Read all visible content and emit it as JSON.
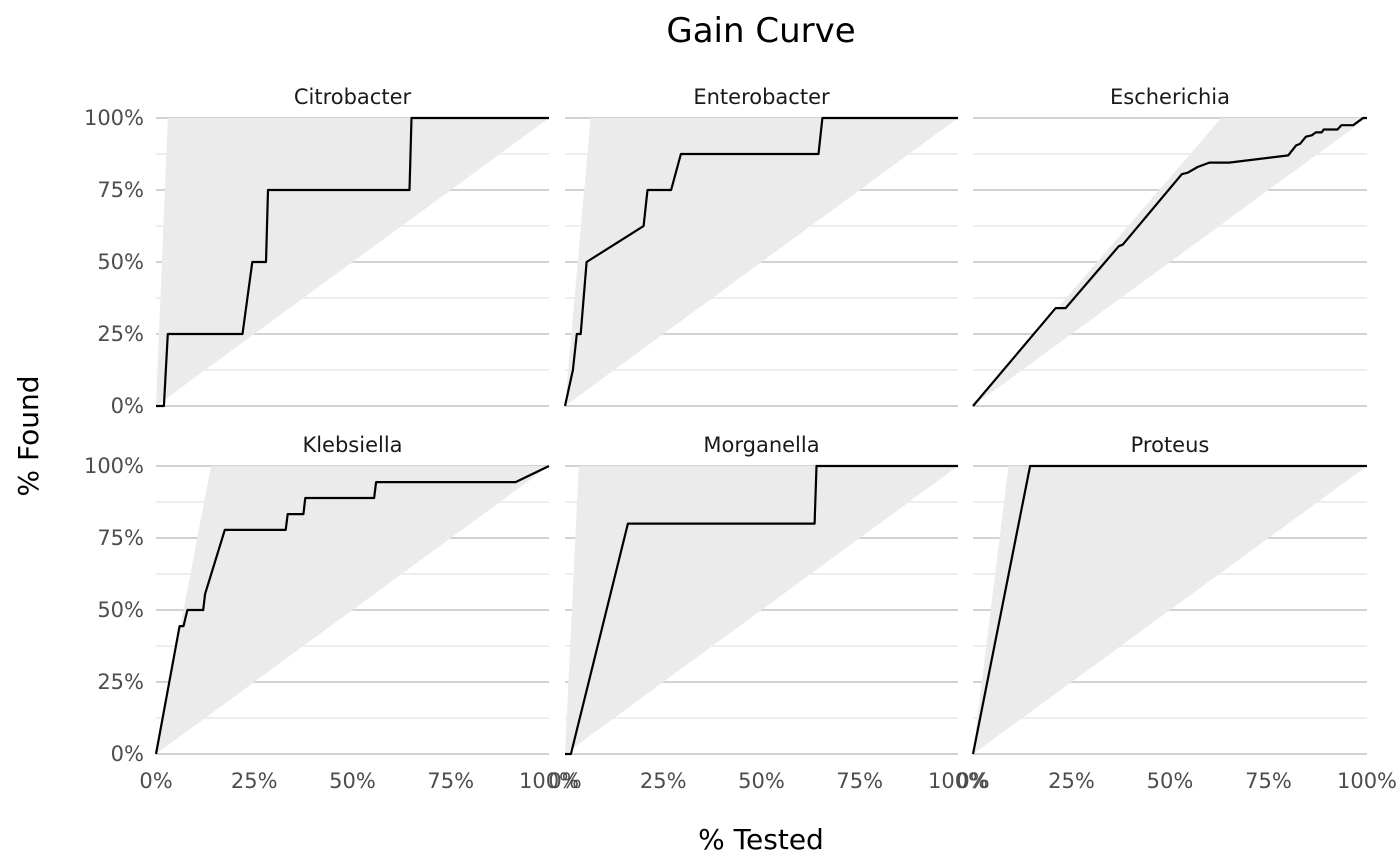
{
  "chart_data": {
    "type": "line",
    "title": "Gain Curve",
    "xlabel": "% Tested",
    "ylabel": "% Found",
    "xlim": [
      0,
      1
    ],
    "ylim": [
      0,
      1
    ],
    "x_tick_labels": [
      "0%",
      "25%",
      "50%",
      "75%",
      "100%"
    ],
    "y_tick_labels": [
      "0%",
      "25%",
      "50%",
      "75%",
      "100%"
    ],
    "grid": true,
    "facets": [
      {
        "name": "Citrobacter",
        "best_x": 0.03,
        "curve": [
          [
            0,
            0
          ],
          [
            0.02,
            0
          ],
          [
            0.03,
            0.25
          ],
          [
            0.22,
            0.25
          ],
          [
            0.245,
            0.5
          ],
          [
            0.28,
            0.5
          ],
          [
            0.285,
            0.75
          ],
          [
            0.645,
            0.75
          ],
          [
            0.65,
            1.0
          ],
          [
            1.0,
            1.0
          ]
        ]
      },
      {
        "name": "Enterobacter",
        "best_x": 0.065,
        "curve": [
          [
            0,
            0
          ],
          [
            0.02,
            0.125
          ],
          [
            0.03,
            0.25
          ],
          [
            0.04,
            0.25
          ],
          [
            0.055,
            0.5
          ],
          [
            0.2,
            0.625
          ],
          [
            0.21,
            0.75
          ],
          [
            0.27,
            0.75
          ],
          [
            0.295,
            0.875
          ],
          [
            0.645,
            0.875
          ],
          [
            0.655,
            1.0
          ],
          [
            1.0,
            1.0
          ]
        ]
      },
      {
        "name": "Escherichia",
        "best_x": 0.63,
        "curve": [
          [
            0,
            0
          ],
          [
            0.21,
            0.34
          ],
          [
            0.235,
            0.34
          ],
          [
            0.37,
            0.555
          ],
          [
            0.38,
            0.56
          ],
          [
            0.53,
            0.805
          ],
          [
            0.545,
            0.81
          ],
          [
            0.57,
            0.83
          ],
          [
            0.6,
            0.845
          ],
          [
            0.65,
            0.845
          ],
          [
            0.8,
            0.87
          ],
          [
            0.82,
            0.905
          ],
          [
            0.83,
            0.91
          ],
          [
            0.845,
            0.935
          ],
          [
            0.86,
            0.94
          ],
          [
            0.87,
            0.95
          ],
          [
            0.885,
            0.95
          ],
          [
            0.89,
            0.96
          ],
          [
            0.925,
            0.96
          ],
          [
            0.935,
            0.975
          ],
          [
            0.965,
            0.975
          ],
          [
            0.99,
            1.0
          ],
          [
            1.0,
            1.0
          ]
        ]
      },
      {
        "name": "Klebsiella",
        "best_x": 0.14,
        "curve": [
          [
            0,
            0
          ],
          [
            0.06,
            0.444
          ],
          [
            0.07,
            0.444
          ],
          [
            0.08,
            0.5
          ],
          [
            0.12,
            0.5
          ],
          [
            0.125,
            0.556
          ],
          [
            0.175,
            0.778
          ],
          [
            0.33,
            0.778
          ],
          [
            0.335,
            0.833
          ],
          [
            0.375,
            0.833
          ],
          [
            0.38,
            0.889
          ],
          [
            0.555,
            0.889
          ],
          [
            0.56,
            0.944
          ],
          [
            0.915,
            0.944
          ],
          [
            1.0,
            1.0
          ]
        ]
      },
      {
        "name": "Morganella",
        "best_x": 0.035,
        "curve": [
          [
            0,
            0
          ],
          [
            0.015,
            0
          ],
          [
            0.16,
            0.8
          ],
          [
            0.635,
            0.8
          ],
          [
            0.64,
            1.0
          ],
          [
            1.0,
            1.0
          ]
        ]
      },
      {
        "name": "Proteus",
        "best_x": 0.09,
        "curve": [
          [
            0,
            0
          ],
          [
            0.145,
            1.0
          ],
          [
            1.0,
            1.0
          ]
        ]
      }
    ]
  },
  "colors": {
    "background": "#ffffff",
    "band_fill": "#ebebeb",
    "major_grid": "#c4c4c4",
    "minor_grid": "#dedede",
    "line": "#000000",
    "tick_label": "#4d4d4d",
    "text": "#000000"
  }
}
